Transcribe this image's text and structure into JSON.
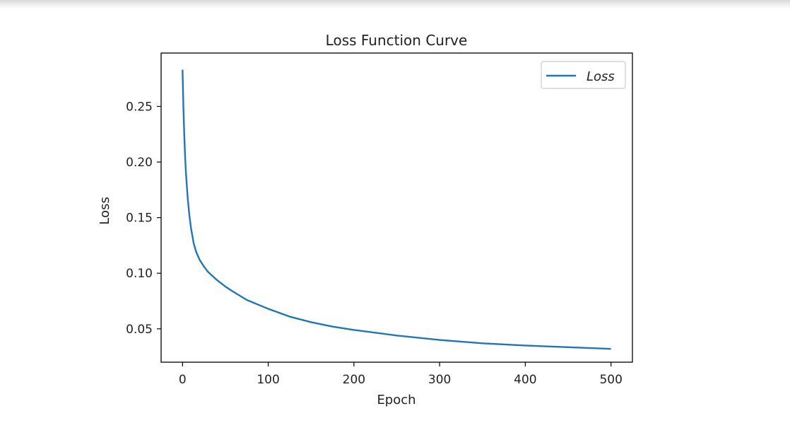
{
  "chart_data": {
    "type": "line",
    "title": "Loss Function Curve",
    "xlabel": "Epoch",
    "ylabel": "Loss",
    "xlim": [
      -25,
      525
    ],
    "ylim": [
      0.02,
      0.298
    ],
    "xticks": [
      0,
      100,
      200,
      300,
      400,
      500
    ],
    "yticks": [
      0.05,
      0.1,
      0.15,
      0.2,
      0.25
    ],
    "xtick_labels": [
      "0",
      "100",
      "200",
      "300",
      "400",
      "500"
    ],
    "ytick_labels": [
      "0.05",
      "0.10",
      "0.15",
      "0.20",
      "0.25"
    ],
    "grid": false,
    "legend": {
      "placement": "top-right"
    },
    "series": [
      {
        "name": "Loss",
        "color": "#1f77b4",
        "x": [
          0,
          1,
          2,
          3,
          4,
          6,
          8,
          10,
          13,
          16,
          20,
          25,
          30,
          40,
          50,
          60,
          75,
          100,
          125,
          150,
          175,
          200,
          250,
          300,
          350,
          400,
          450,
          500
        ],
        "y": [
          0.283,
          0.25,
          0.225,
          0.205,
          0.19,
          0.168,
          0.152,
          0.14,
          0.127,
          0.119,
          0.112,
          0.106,
          0.101,
          0.094,
          0.088,
          0.083,
          0.076,
          0.068,
          0.061,
          0.056,
          0.052,
          0.049,
          0.044,
          0.04,
          0.037,
          0.035,
          0.0335,
          0.032
        ]
      }
    ]
  }
}
